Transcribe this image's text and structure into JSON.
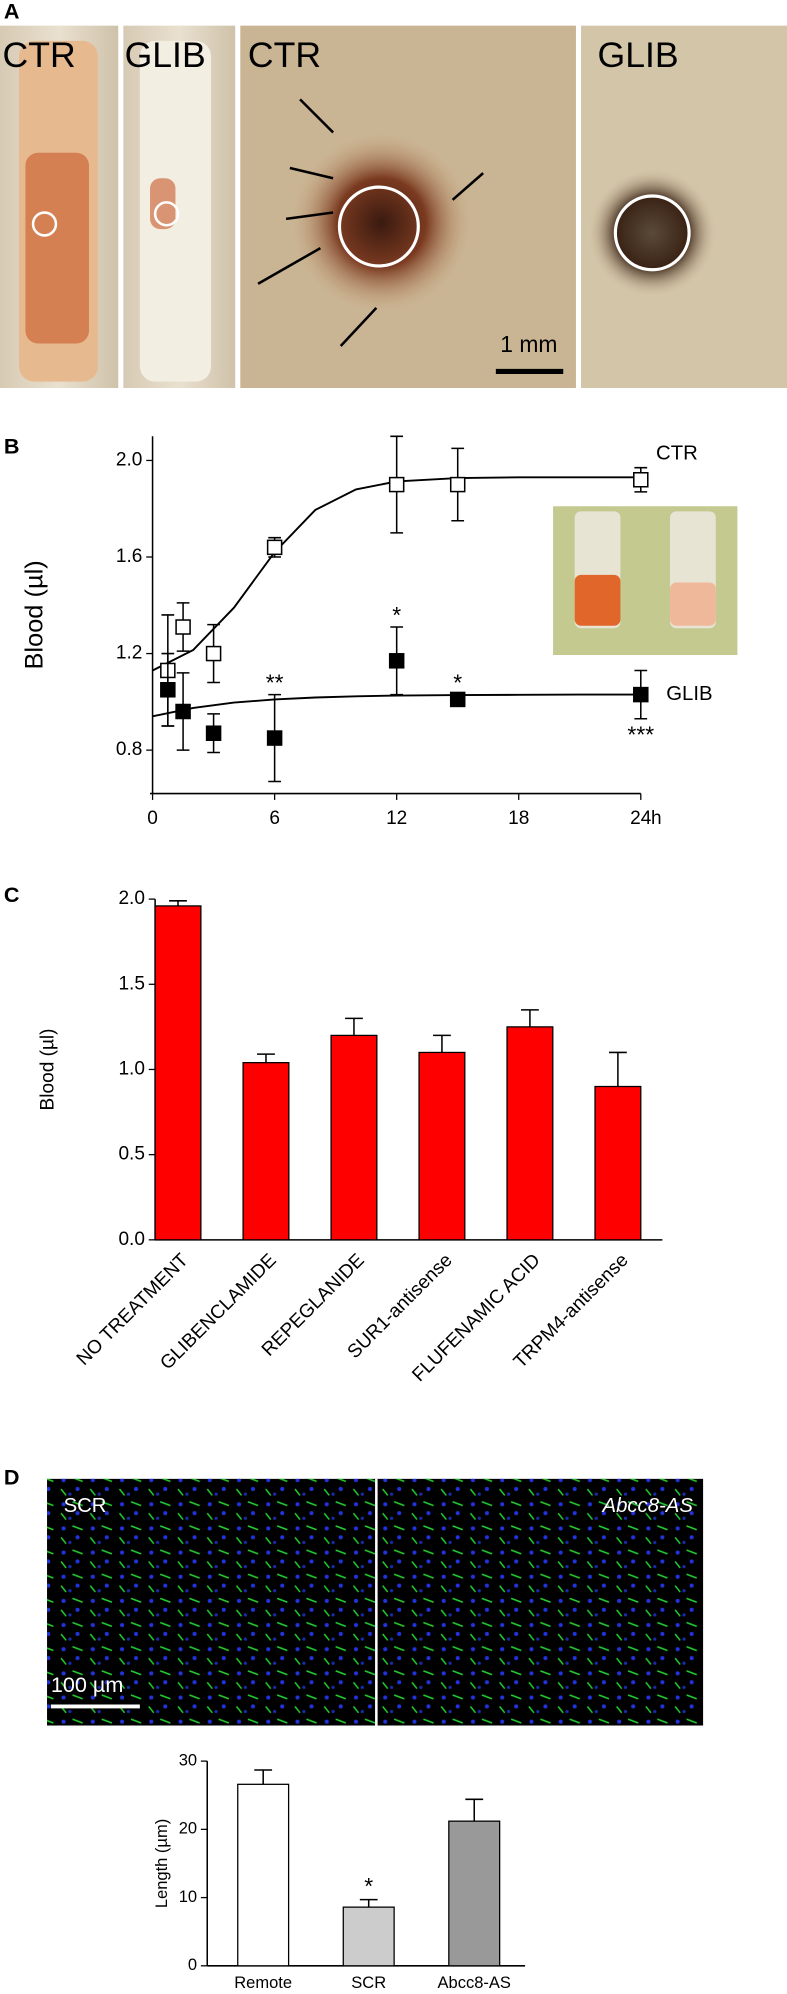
{
  "panel_labels": [
    "A",
    "B",
    "C",
    "D"
  ],
  "photo_a": {
    "labels": [
      "CTR",
      "GLIB",
      "CTR",
      "GLIB"
    ],
    "scale_bar": "1 mm"
  },
  "photo_d": {
    "labels": [
      "SCR",
      "Abcc8-AS"
    ],
    "scale_bar": "100 µm"
  },
  "chart_data": [
    {
      "type": "line",
      "ylabel": "Blood (µl)",
      "x_unit": "h",
      "x": [
        0.75,
        1.5,
        3,
        6,
        12,
        15,
        24
      ],
      "series": [
        {
          "name": "CTR",
          "color": "#ffffff",
          "values": [
            1.13,
            1.31,
            1.2,
            1.64,
            1.9,
            1.9,
            1.92
          ],
          "errors": [
            0.23,
            0.1,
            0.12,
            0.04,
            0.2,
            0.15,
            0.05
          ]
        },
        {
          "name": "GLIB",
          "color": "#000000",
          "values": [
            1.05,
            0.96,
            0.87,
            0.85,
            1.17,
            1.01,
            1.03
          ],
          "errors": [
            0.15,
            0.16,
            0.08,
            0.18,
            0.14,
            0.02,
            0.1
          ]
        }
      ],
      "fits": [
        {
          "x": [
            0,
            2,
            4,
            6,
            8,
            10,
            12,
            15,
            18,
            21,
            24
          ],
          "values": [
            1.13,
            1.215,
            1.39,
            1.62,
            1.795,
            1.88,
            1.913,
            1.927,
            1.93,
            1.93,
            1.93
          ]
        },
        {
          "x": [
            0,
            2,
            4,
            6,
            8,
            10,
            12,
            15,
            18,
            21,
            24
          ],
          "values": [
            0.94,
            0.975,
            0.997,
            1.01,
            1.018,
            1.023,
            1.026,
            1.028,
            1.029,
            1.03,
            1.03
          ]
        }
      ],
      "annotations": [
        {
          "text": "**",
          "x": 6,
          "position": "above"
        },
        {
          "text": "*",
          "x": 12,
          "position": "above"
        },
        {
          "text": "*",
          "x": 15,
          "position": "above"
        },
        {
          "text": "***",
          "x": 24,
          "position": "below"
        }
      ],
      "xlim": [
        0,
        24
      ],
      "xticks": [
        0,
        6,
        12,
        18,
        24
      ],
      "ylim": [
        0.62,
        2.1
      ],
      "yticks": [
        0.8,
        1.2,
        1.6,
        {
          "value": 2,
          "label": "2.0"
        }
      ]
    },
    {
      "type": "bar",
      "ylabel": "Blood (µl)",
      "color": "#ff0000",
      "categories": [
        "NO TREATMENT",
        "GLIBENCLAMIDE",
        "REPEGLANIDE",
        "SUR1-antisense",
        "FLUFENAMIC ACID",
        "TRPM4-antisense"
      ],
      "values": [
        1.96,
        1.04,
        1.2,
        1.1,
        1.25,
        0.9
      ],
      "errors": [
        0.03,
        0.05,
        0.1,
        0.1,
        0.1,
        0.2
      ],
      "ylim": [
        0,
        2
      ],
      "yticks": [
        {
          "value": 0,
          "label": "0.0"
        },
        0.5,
        {
          "value": 1,
          "label": "1.0"
        },
        1.5,
        {
          "value": 2,
          "label": "2.0"
        }
      ]
    },
    {
      "type": "bar",
      "ylabel": "Length (µm)",
      "colors": [
        "#ffffff",
        "#cccccc",
        "#999999"
      ],
      "categories": [
        "Remote",
        "SCR",
        "Abcc8-AS"
      ],
      "values": [
        26.6,
        8.6,
        21.2
      ],
      "errors": [
        2.1,
        1.1,
        3.2
      ],
      "annotations": [
        {
          "text": "*",
          "category": "SCR"
        }
      ],
      "ylim": [
        0,
        30
      ],
      "yticks": [
        0,
        10,
        20,
        30
      ]
    }
  ]
}
